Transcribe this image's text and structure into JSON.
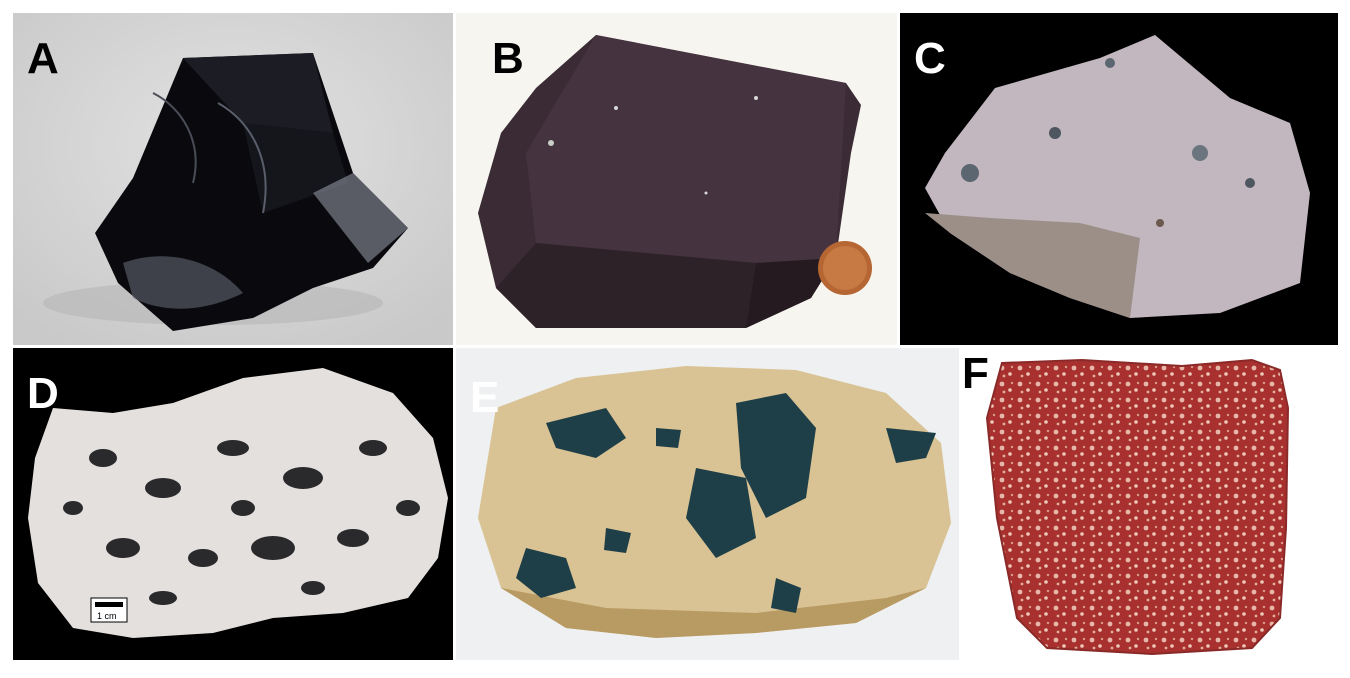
{
  "figure": {
    "panels": [
      {
        "id": "panel-a",
        "label": "A",
        "background": "#d8d8d8",
        "specimen_color": "#0b0b0f"
      },
      {
        "id": "panel-b",
        "label": "B",
        "background": "#f6f5ef",
        "specimen_color": "#3a2a33"
      },
      {
        "id": "panel-c",
        "label": "C",
        "background": "#000000",
        "specimen_color": "#c4b8c0"
      },
      {
        "id": "panel-d",
        "label": "D",
        "background": "#000000",
        "specimen_color": "#e6e2df",
        "scale_label": "1 cm"
      },
      {
        "id": "panel-e",
        "label": "E",
        "background": "#eef0f2",
        "specimen_color": "#d8c08e"
      },
      {
        "id": "panel-f",
        "label": "F",
        "background": "#ffffff",
        "specimen_color": "#a8302e"
      }
    ]
  }
}
